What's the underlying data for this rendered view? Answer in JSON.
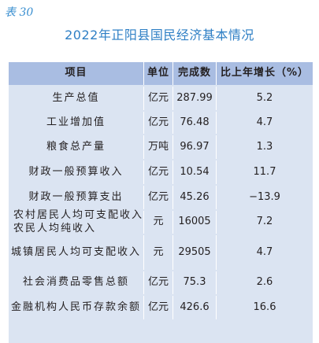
{
  "table_tag": "表 30",
  "title": "2022年正阳县国民经济基本情况",
  "headers": [
    "项目",
    "单位",
    "完成数",
    "比上年增长（%）"
  ],
  "rows": [
    {
      "item": "生产总值",
      "unit": "亿元",
      "value": "287.99",
      "growth": "5.2"
    },
    {
      "item": "工业增加值",
      "unit": "亿元",
      "value": "76.48",
      "growth": "4.7"
    },
    {
      "item": "粮食总产量",
      "unit": "万吨",
      "value": "96.97",
      "growth": "1.3"
    },
    {
      "item": "财政一般预算收入",
      "unit": "亿元",
      "value": "10.54",
      "growth": "11.7"
    },
    {
      "item": "财政一般预算支出",
      "unit": "亿元",
      "value": "45.26",
      "growth": "−13.9"
    },
    {
      "item": "农村居民人均可支配收入",
      "item2": "农民人均纯收入",
      "unit": "元",
      "value": "16005",
      "growth": "7.2"
    },
    {
      "item": "城镇居民人均可支配收入",
      "unit": "元",
      "value": "29505",
      "growth": "4.7"
    },
    {
      "item": "社会消费品零售总额",
      "unit": "亿元",
      "value": "75.3",
      "growth": "2.6"
    },
    {
      "item": "金融机构人民币存款余额",
      "unit": "亿元",
      "value": "426.6",
      "growth": "16.6"
    }
  ]
}
